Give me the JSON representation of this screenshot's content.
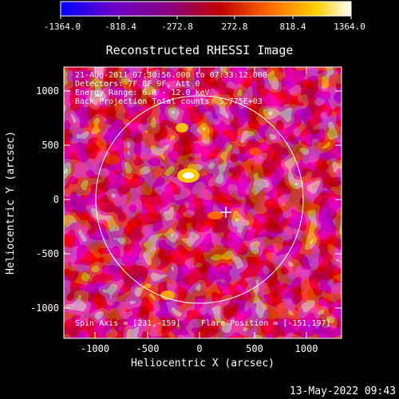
{
  "colorbar": {
    "tick_labels": [
      "-1364.0",
      "-818.4",
      "-272.8",
      "272.8",
      "818.4",
      "1364.0"
    ],
    "min": -1364.0,
    "max": 1364.0,
    "colormap": [
      "#0000ff",
      "#6a00c8",
      "#8a007a",
      "#c00000",
      "#ff6a00",
      "#ffd000",
      "#ffffff"
    ]
  },
  "plot": {
    "title": "Reconstructed RHESSI Image",
    "xlabel": "Heliocentric X (arcsec)",
    "ylabel": "Heliocentric Y (arcsec)",
    "x_ticks": [
      "-1000",
      "-500",
      "0",
      "500",
      "1000"
    ],
    "y_ticks": [
      "1000",
      "500",
      "0",
      "-500",
      "-1000"
    ],
    "annotations": {
      "time_range": "21-Aug-2011 07:30:56.000 to 07:33:12.000",
      "detectors": "Detectors: 7F 8F 9F, Att 0",
      "energy": "Energy Range: 6.0 - 12.0 keV",
      "method_counts": "Back Projection    Total counts: 5.775E+03",
      "spin_axis": "Spin Axis = [231,-159]",
      "flare_position": "Flare Position = [-151,197]"
    }
  },
  "footer": {
    "date": "13-May-2022 09:43"
  },
  "chart_data": {
    "type": "heatmap",
    "title": "Reconstructed RHESSI Image",
    "xlabel": "Heliocentric X (arcsec)",
    "ylabel": "Heliocentric Y (arcsec)",
    "xlim": [
      -1280,
      1280
    ],
    "ylim": [
      -1280,
      1280
    ],
    "value_range": [
      -1364.0,
      1364.0
    ],
    "solar_limb_radius_arcsec": 960,
    "marker": {
      "x": 231,
      "y": -159
    }
  }
}
